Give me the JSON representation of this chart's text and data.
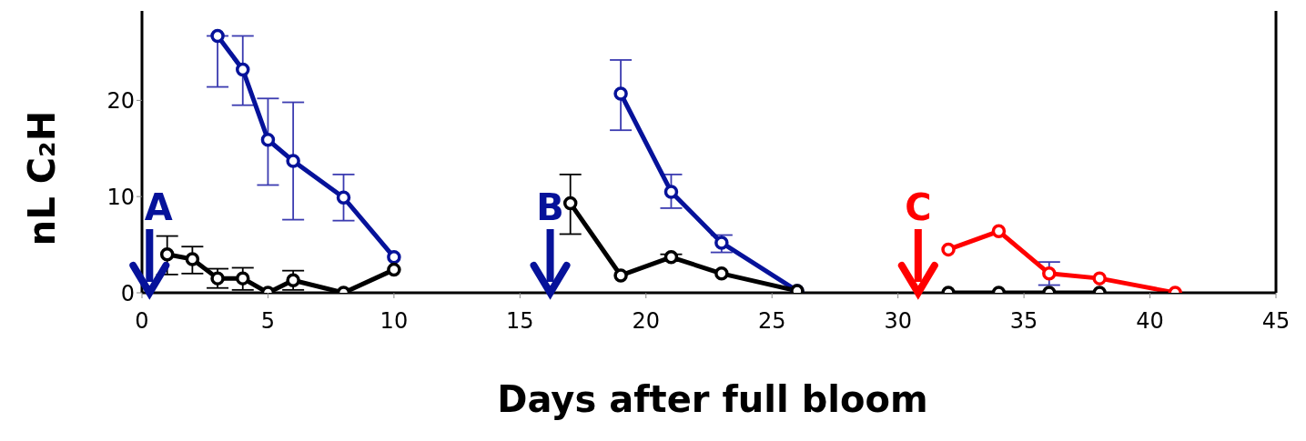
{
  "chart_data": {
    "type": "line",
    "xlabel": "Days after full bloom",
    "ylabel": "nL C₂H",
    "xlim": [
      0,
      45
    ],
    "xticks": [
      0,
      5,
      10,
      15,
      20,
      25,
      30,
      35,
      40,
      45
    ],
    "ylim": [
      0,
      29.3
    ],
    "yticks": [
      0,
      10,
      20
    ],
    "marker": "circle",
    "line_style": "solid",
    "series": [
      {
        "color": "#06129a",
        "x": [
          3,
          4,
          5,
          6,
          8,
          10
        ],
        "values": [
          26.7,
          23.2,
          15.9,
          13.7,
          9.9,
          3.7
        ],
        "errors": [
          [
            21.4,
            26.7
          ],
          [
            19.5,
            26.7
          ],
          [
            11.2,
            20.2
          ],
          [
            7.6,
            19.8
          ],
          [
            7.5,
            12.3
          ],
          null
        ]
      },
      {
        "color": "#06129a",
        "x": [
          19,
          21,
          23,
          26
        ],
        "values": [
          20.7,
          10.5,
          5.2,
          0.2
        ],
        "errors": [
          [
            16.9,
            24.2
          ],
          [
            8.8,
            12.3
          ],
          [
            4.2,
            6.0
          ],
          null
        ]
      },
      {
        "color": "#ff0000",
        "x": [
          32,
          34,
          36,
          38,
          41
        ],
        "values": [
          4.5,
          6.4,
          2.0,
          1.5,
          0
        ],
        "errors": [
          null,
          null,
          [
            0.8,
            3.2
          ],
          null,
          null
        ]
      },
      {
        "color": "#000000",
        "x": [
          1,
          2,
          3,
          4,
          5,
          6,
          8,
          10
        ],
        "values": [
          4.0,
          3.5,
          1.5,
          1.5,
          0,
          1.3,
          0,
          2.4
        ],
        "errors": [
          [
            1.9,
            5.9
          ],
          [
            2.0,
            4.8
          ],
          [
            0.5,
            2.5
          ],
          [
            0.3,
            2.6
          ],
          null,
          [
            0.3,
            2.3
          ],
          null,
          null
        ]
      },
      {
        "color": "#000000",
        "x": [
          17,
          19,
          21,
          23,
          26
        ],
        "values": [
          9.3,
          1.8,
          3.7,
          2.0,
          0.2
        ],
        "errors": [
          [
            6.1,
            12.3
          ],
          null,
          [
            3.3,
            4.0
          ],
          null,
          null
        ]
      },
      {
        "color": "#000000",
        "x": [
          32,
          34,
          36,
          38
        ],
        "values": [
          0,
          0,
          0,
          0
        ]
      }
    ],
    "ref_lines": [
      {
        "axis": "x",
        "value": 0.3,
        "label": "A",
        "color": "#06129a"
      },
      {
        "axis": "x",
        "value": 16.2,
        "label": "B",
        "color": "#06129a"
      },
      {
        "axis": "x",
        "value": 30.8,
        "label": "C",
        "color": "#ff0000"
      }
    ]
  }
}
